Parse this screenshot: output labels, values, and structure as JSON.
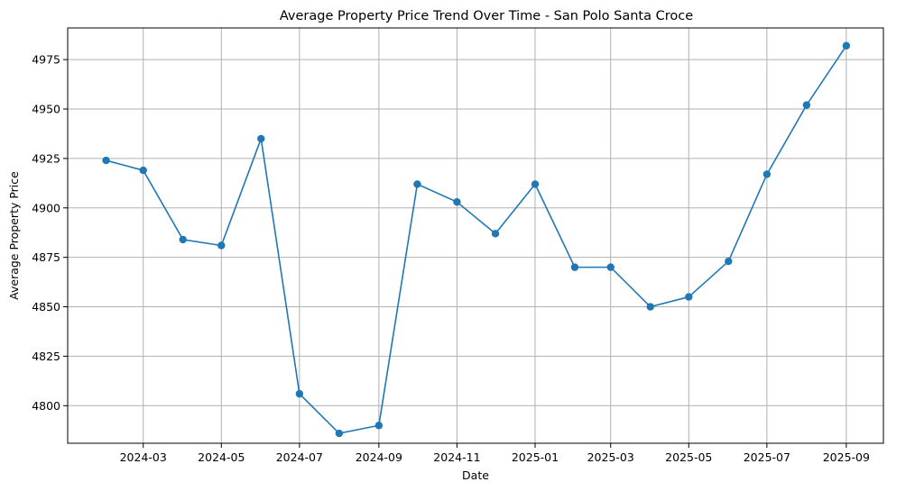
{
  "chart_data": {
    "type": "line",
    "title": "Average Property Price Trend Over Time - San Polo Santa Croce",
    "xlabel": "Date",
    "ylabel": "Average Property Price",
    "grid": true,
    "color": "#1f77b4",
    "marker": "circle",
    "x": [
      "2024-02-01",
      "2024-03-01",
      "2024-04-01",
      "2024-05-01",
      "2024-06-01",
      "2024-07-01",
      "2024-08-01",
      "2024-09-01",
      "2024-10-01",
      "2024-11-01",
      "2024-12-01",
      "2025-01-01",
      "2025-02-01",
      "2025-03-01",
      "2025-04-01",
      "2025-05-01",
      "2025-06-01",
      "2025-07-01",
      "2025-08-01",
      "2025-09-01"
    ],
    "values": [
      4924,
      4919,
      4884,
      4881,
      4935,
      4806,
      4786,
      4790,
      4912,
      4903,
      4887,
      4912,
      4870,
      4870,
      4850,
      4855,
      4873,
      4917,
      4952,
      4982
    ],
    "xlim": [
      "2024-01-02",
      "2025-09-30"
    ],
    "ylim": [
      4781,
      4991
    ],
    "x_ticks": [
      "2024-03-01",
      "2024-05-01",
      "2024-07-01",
      "2024-09-01",
      "2024-11-01",
      "2025-01-01",
      "2025-03-01",
      "2025-05-01",
      "2025-07-01",
      "2025-09-01"
    ],
    "x_tick_labels": [
      "2024-03",
      "2024-05",
      "2024-07",
      "2024-09",
      "2024-11",
      "2025-01",
      "2025-03",
      "2025-05",
      "2025-07",
      "2025-09"
    ],
    "y_ticks": [
      4800,
      4825,
      4850,
      4875,
      4900,
      4925,
      4950,
      4975
    ]
  }
}
